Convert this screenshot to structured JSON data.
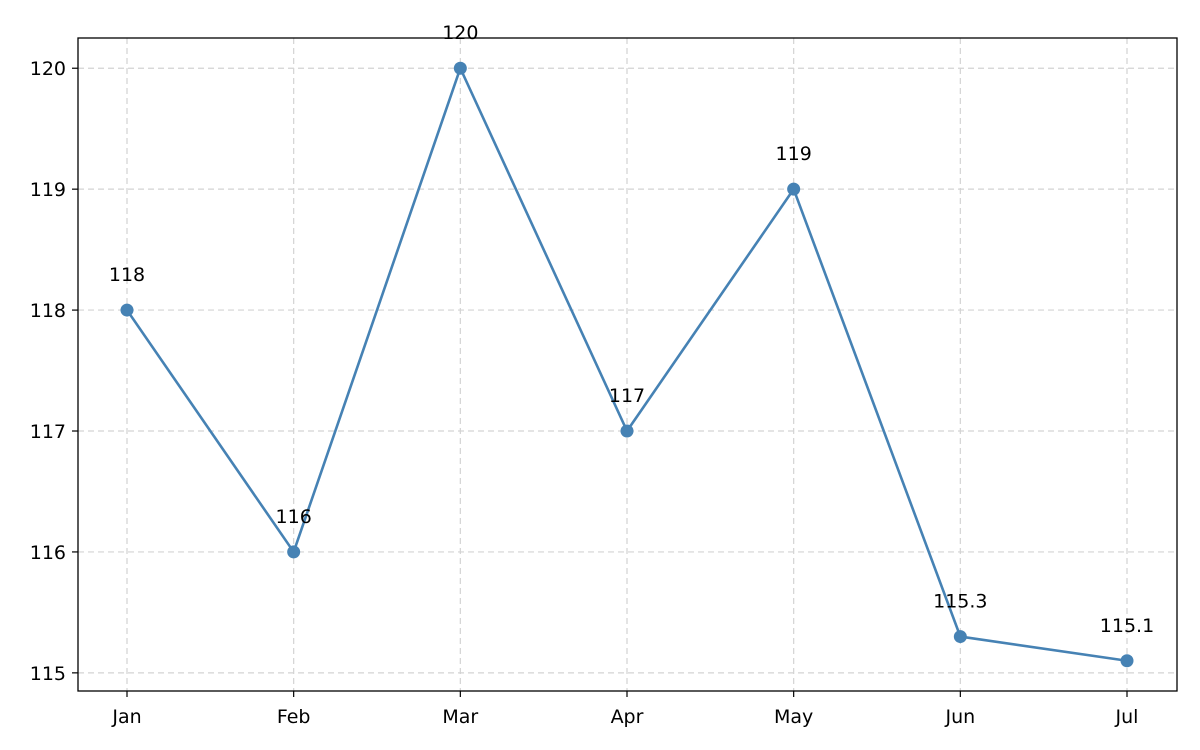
{
  "chart_data": {
    "type": "line",
    "categories": [
      "Jan",
      "Feb",
      "Mar",
      "Apr",
      "May",
      "Jun",
      "Jul"
    ],
    "series": [
      {
        "values": [
          118,
          116,
          120,
          117,
          119,
          115.3,
          115.1
        ],
        "labels": [
          "118",
          "116",
          "120",
          "117",
          "119",
          "115.3",
          "115.1"
        ]
      }
    ],
    "ylim": [
      114.85,
      120.25
    ],
    "yticks": [
      115,
      116,
      117,
      118,
      119,
      120
    ],
    "grid": true,
    "line_color": "#4682b4",
    "marker": "circle"
  }
}
